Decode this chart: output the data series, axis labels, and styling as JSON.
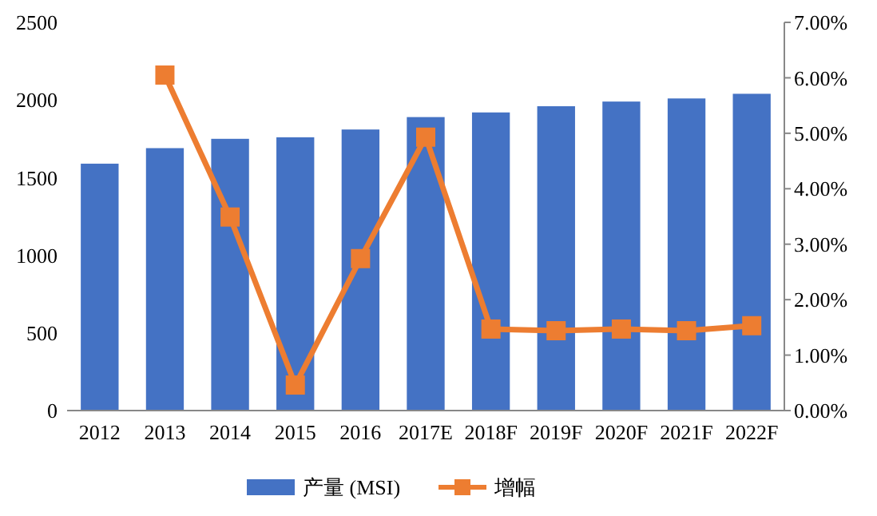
{
  "chart_data": {
    "type": "bar",
    "categories": [
      "2012",
      "2013",
      "2014",
      "2015",
      "2016",
      "2017E",
      "2018F",
      "2019F",
      "2020F",
      "2021F",
      "2022F"
    ],
    "series": [
      {
        "name": "产量 (MSI)",
        "color": "#4472c4",
        "values": [
          1590,
          1690,
          1750,
          1760,
          1810,
          1890,
          1920,
          1960,
          1990,
          2010,
          2040
        ]
      },
      {
        "name": "增幅",
        "type": "line",
        "axis": "y2",
        "color": "#ed7d31",
        "marker": "square",
        "values": [
          null,
          6.05,
          3.49,
          0.46,
          2.74,
          4.93,
          1.47,
          1.44,
          1.47,
          1.44,
          1.53
        ]
      }
    ],
    "ylim": [
      0,
      2500
    ],
    "yticks": [
      0,
      500,
      1000,
      1500,
      2000,
      2500
    ],
    "y2lim": [
      0,
      7
    ],
    "y2ticks": [
      {
        "value": 0,
        "label": "0.00%"
      },
      {
        "value": 1,
        "label": "1.00%"
      },
      {
        "value": 2,
        "label": "2.00%"
      },
      {
        "value": 3,
        "label": "3.00%"
      },
      {
        "value": 4,
        "label": "4.00%"
      },
      {
        "value": 5,
        "label": "5.00%"
      },
      {
        "value": 6,
        "label": "6.00%"
      },
      {
        "value": 7,
        "label": "7.00%"
      }
    ],
    "legend": "bottom",
    "grid": false
  }
}
